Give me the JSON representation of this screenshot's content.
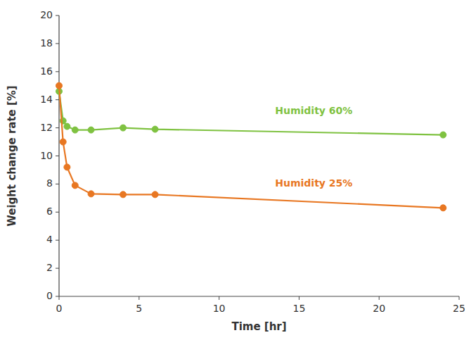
{
  "chart_data": {
    "type": "line",
    "x": [
      0,
      0.25,
      0.5,
      1,
      2,
      4,
      6,
      24
    ],
    "series": [
      {
        "color": "#7fc241",
        "marker": "circle",
        "values": [
          14.6,
          12.5,
          12.1,
          11.85,
          11.85,
          12.0,
          11.9,
          11.5
        ]
      },
      {
        "color": "#e87722",
        "marker": "circle",
        "values": [
          15.0,
          11.0,
          9.2,
          7.9,
          7.3,
          7.25,
          7.25,
          6.3
        ]
      }
    ],
    "annotations": [
      {
        "text": "Humidity 60%",
        "x": 13.5,
        "y": 13.2,
        "color": "#7fc241"
      },
      {
        "text": "Humidity 25%",
        "x": 13.5,
        "y": 8.0,
        "color": "#e87722"
      }
    ],
    "xlabel": "Time [hr]",
    "ylabel": "Weight change rate [%]",
    "xlim": [
      0,
      25
    ],
    "ylim": [
      0,
      20
    ],
    "xticks": [
      0,
      5,
      10,
      15,
      20,
      25
    ],
    "yticks": [
      0,
      2,
      4,
      6,
      8,
      10,
      12,
      14,
      16,
      18,
      20
    ],
    "grid": false
  }
}
